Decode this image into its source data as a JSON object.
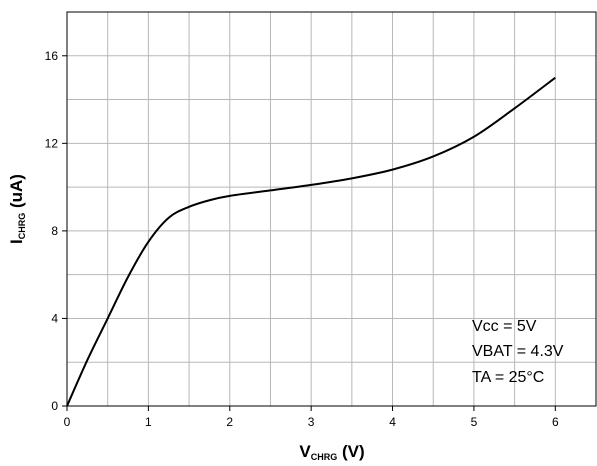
{
  "chart_data": {
    "type": "line",
    "xlabel": {
      "main": "V",
      "sub": "CHRG",
      "suffix": " (V)"
    },
    "ylabel": {
      "main": "I",
      "sub": "CHRG",
      "suffix": " (uA)"
    },
    "xlim": [
      0,
      6.5
    ],
    "ylim": [
      0,
      18
    ],
    "x_ticks": [
      0,
      1,
      2,
      3,
      4,
      5,
      6
    ],
    "y_ticks": [
      0,
      4,
      8,
      12,
      16
    ],
    "x_tick_labels": [
      "0",
      "1",
      "2",
      "3",
      "4",
      "5",
      "6"
    ],
    "y_tick_labels": [
      "0",
      "4",
      "8",
      "12",
      "16"
    ],
    "grid": true,
    "series": [
      {
        "x": [
          0,
          0.25,
          0.5,
          0.75,
          1.0,
          1.25,
          1.5,
          1.75,
          2.0,
          2.5,
          3.0,
          3.5,
          4.0,
          4.5,
          5.0,
          5.5,
          6.0
        ],
        "y": [
          0,
          2.1,
          4.0,
          5.9,
          7.5,
          8.6,
          9.1,
          9.4,
          9.6,
          9.85,
          10.1,
          10.4,
          10.8,
          11.4,
          12.3,
          13.6,
          15.0
        ],
        "color": "#000000"
      }
    ],
    "annotations": [
      "Vcc = 5V",
      "VBAT = 4.3V",
      "TA = 25°C"
    ]
  }
}
